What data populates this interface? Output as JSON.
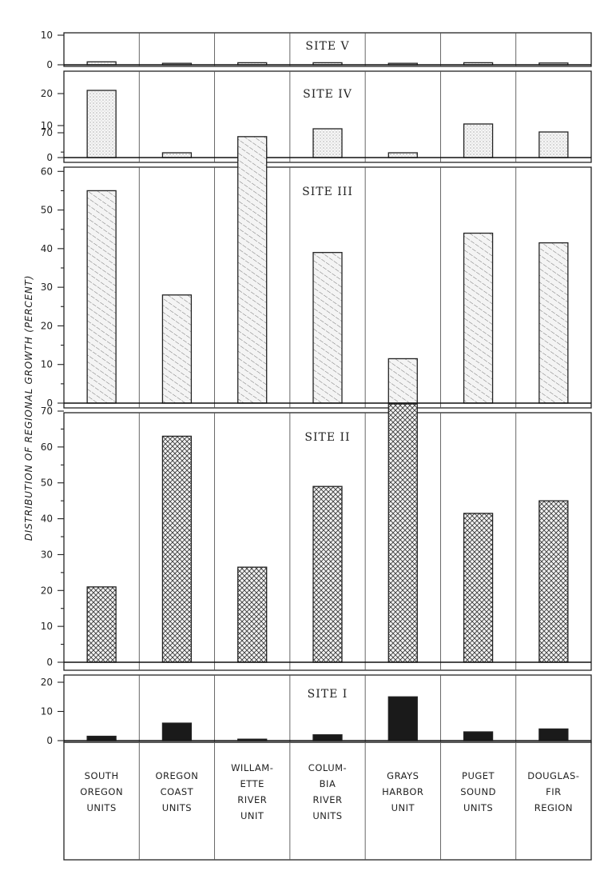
{
  "chart_data": {
    "type": "bar",
    "ylabel": "DISTRIBUTION OF REGIONAL GROWTH (PERCENT)",
    "categories": [
      [
        "SOUTH",
        "OREGON",
        "UNITS"
      ],
      [
        "OREGON",
        "COAST",
        "UNITS"
      ],
      [
        "WILLAM-",
        "ETTE",
        "RIVER",
        "UNIT"
      ],
      [
        "COLUM-",
        "BIA",
        "RIVER",
        "UNITS"
      ],
      [
        "GRAYS",
        "HARBOR",
        "UNIT"
      ],
      [
        "PUGET",
        "SOUND",
        "UNITS"
      ],
      [
        "DOUGLAS-",
        "FIR",
        "REGION"
      ]
    ],
    "panels": [
      {
        "title": "SITE V",
        "ylim": [
          0,
          10
        ],
        "yticks": [
          0,
          10
        ],
        "values": [
          1,
          0.5,
          0.7,
          0.7,
          0.5,
          0.7,
          0.6
        ],
        "fill": "light-dotted"
      },
      {
        "title": "SITE IV",
        "ylim": [
          0,
          20
        ],
        "yticks": [
          0,
          10,
          20
        ],
        "values": [
          21,
          1.5,
          3,
          9,
          1.5,
          10.5,
          8
        ],
        "fill": "light-dotted"
      },
      {
        "title": "SITE III",
        "ylim": [
          0,
          70
        ],
        "yticks": [
          0,
          10,
          20,
          30,
          40,
          50,
          60,
          70
        ],
        "values": [
          55,
          28,
          69,
          39,
          11.5,
          44,
          41.5
        ],
        "fill": "diagonal-hatch"
      },
      {
        "title": "SITE II",
        "ylim": [
          0,
          70
        ],
        "yticks": [
          0,
          10,
          20,
          30,
          40,
          50,
          60,
          70
        ],
        "values": [
          21,
          63,
          26.5,
          49,
          72,
          41.5,
          45
        ],
        "fill": "cross-hatch"
      },
      {
        "title": "SITE I",
        "ylim": [
          0,
          20
        ],
        "yticks": [
          0,
          10,
          20
        ],
        "values": [
          1.5,
          6,
          0.5,
          2,
          15,
          3,
          4
        ],
        "fill": "solid"
      }
    ],
    "colors": {
      "ink": "#222222",
      "solid_bar": "#1a1a1a",
      "hatch_bg": "#f4f4f4"
    }
  }
}
